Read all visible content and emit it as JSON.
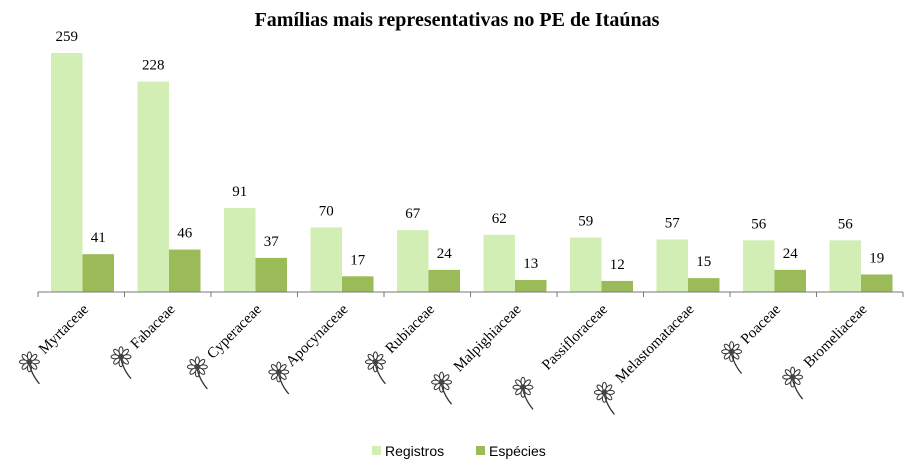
{
  "chart_data": {
    "type": "bar",
    "title": "Famílias mais representativas no PE de Itaúnas",
    "categories": [
      "Myrtaceae",
      "Fabaceae",
      "Cyperaceae",
      "Apocynaceae",
      "Rubiaceae",
      "Malpighiaceae",
      "Passifloraceae",
      "Melastomataceae",
      "Poaceae",
      "Bromeliaceae"
    ],
    "series": [
      {
        "name": "Registros",
        "color": "#d3eeb5",
        "values": [
          259,
          228,
          91,
          70,
          67,
          62,
          59,
          57,
          56,
          56
        ]
      },
      {
        "name": "Espécies",
        "color": "#9bbb59",
        "values": [
          41,
          46,
          37,
          17,
          24,
          13,
          12,
          15,
          24,
          19
        ]
      }
    ],
    "legend": "bottom"
  }
}
